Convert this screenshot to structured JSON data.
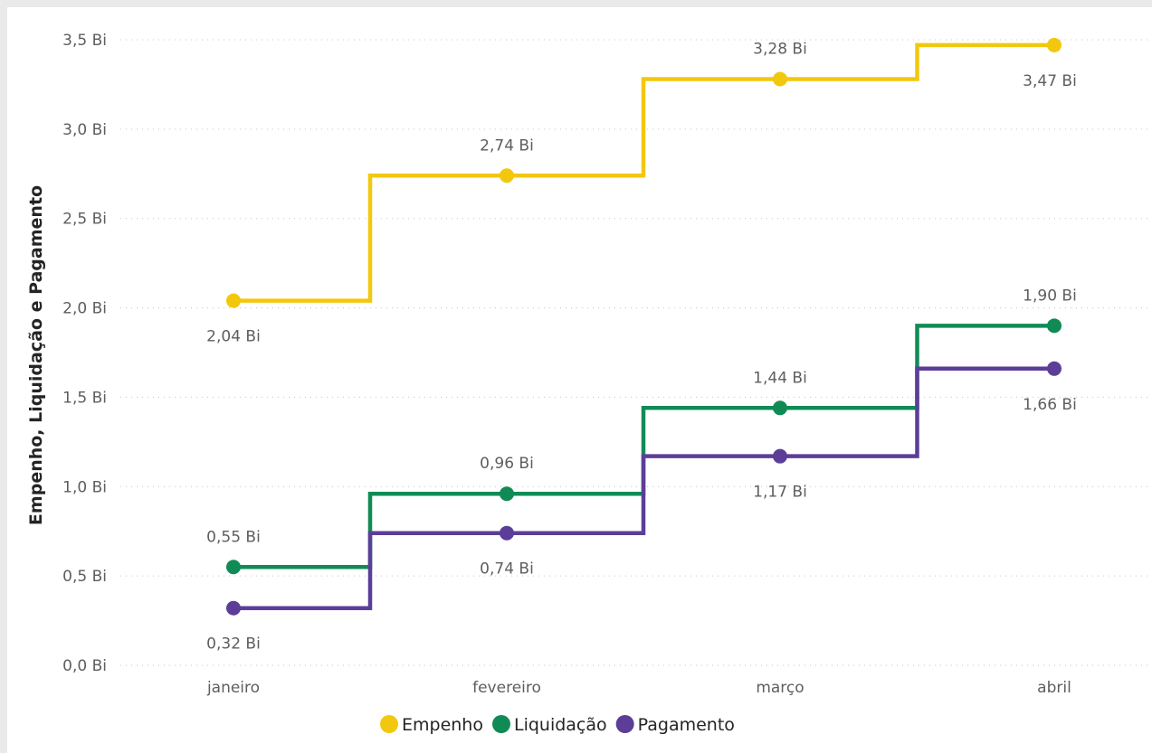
{
  "chart_data": {
    "type": "line",
    "step": true,
    "categories": [
      "janeiro",
      "fevereiro",
      "março",
      "abril"
    ],
    "y_ticks": [
      "0,0 Bi",
      "0,5 Bi",
      "1,0 Bi",
      "1,5 Bi",
      "2,0 Bi",
      "2,5 Bi",
      "3,0 Bi",
      "3,5 Bi"
    ],
    "ylim": [
      0,
      3.5
    ],
    "ylabel": "Empenho, Liquidação e Pagamento",
    "grid": true,
    "legend_position": "bottom-center",
    "series": [
      {
        "name": "Empenho",
        "color": "#F2C80F",
        "values": [
          2.04,
          2.74,
          3.28,
          3.47
        ],
        "labels": [
          "2,04 Bi",
          "2,74 Bi",
          "3,28 Bi",
          "3,47 Bi"
        ]
      },
      {
        "name": "Liquidação",
        "color": "#118B56",
        "values": [
          0.55,
          0.96,
          1.44,
          1.9
        ],
        "labels": [
          "0,55 Bi",
          "0,96 Bi",
          "1,44 Bi",
          "1,90 Bi"
        ]
      },
      {
        "name": "Pagamento",
        "color": "#5C3E98",
        "values": [
          0.32,
          0.74,
          1.17,
          1.66
        ],
        "labels": [
          "0,32 Bi",
          "0,74 Bi",
          "1,17 Bi",
          "1,66 Bi"
        ]
      }
    ]
  }
}
